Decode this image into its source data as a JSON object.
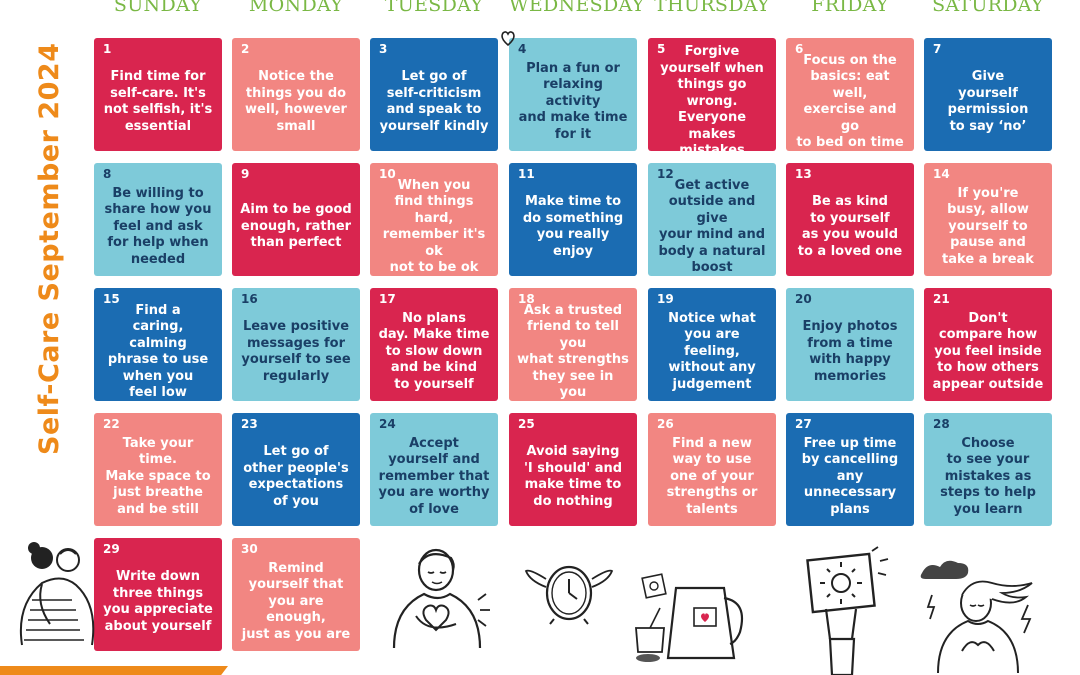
{
  "title": "Self-Care September 2024",
  "days": [
    "SUNDAY",
    "MONDAY",
    "TUESDAY",
    "WEDNESDAY",
    "THURSDAY",
    "FRIDAY",
    "SATURDAY"
  ],
  "cells": [
    {
      "num": "1",
      "text": "Find time for\nself-care. It's\nnot selfish, it's\nessential",
      "color": "red"
    },
    {
      "num": "2",
      "text": "Notice the\nthings you do\nwell, however\nsmall",
      "color": "pink"
    },
    {
      "num": "3",
      "text": "Let go of\nself-criticism\nand speak to\nyourself kindly",
      "color": "blue"
    },
    {
      "num": "4",
      "text": "Plan a fun or\nrelaxing activity\nand make time\nfor it",
      "color": "teal"
    },
    {
      "num": "5",
      "text": "Forgive\nyourself when\nthings go wrong.\nEveryone makes\nmistakes",
      "color": "red"
    },
    {
      "num": "6",
      "text": "Focus on the\nbasics: eat well,\nexercise and go\nto bed on time",
      "color": "pink"
    },
    {
      "num": "7",
      "text": "Give\nyourself\npermission\nto say ‘no’",
      "color": "blue"
    },
    {
      "num": "8",
      "text": "Be willing to\nshare how you\nfeel and ask\nfor help when\nneeded",
      "color": "teal"
    },
    {
      "num": "9",
      "text": "Aim to be good\nenough, rather\nthan perfect",
      "color": "red"
    },
    {
      "num": "10",
      "text": "When you\nfind things hard,\nremember it's ok\nnot to be ok",
      "color": "pink"
    },
    {
      "num": "11",
      "text": "Make time to\ndo something\nyou really enjoy",
      "color": "blue"
    },
    {
      "num": "12",
      "text": "Get active\noutside and give\nyour mind and\nbody a natural\nboost",
      "color": "teal"
    },
    {
      "num": "13",
      "text": "Be as kind\nto yourself\nas you would\nto a loved one",
      "color": "red"
    },
    {
      "num": "14",
      "text": "If you're\nbusy, allow\nyourself to\npause and\ntake a break",
      "color": "pink"
    },
    {
      "num": "15",
      "text": "Find a\ncaring, calming\nphrase to use\nwhen you\nfeel low",
      "color": "blue"
    },
    {
      "num": "16",
      "text": "Leave positive\nmessages for\nyourself to see\nregularly",
      "color": "teal"
    },
    {
      "num": "17",
      "text": "No plans\nday. Make time\nto slow down\nand be kind\nto yourself",
      "color": "red"
    },
    {
      "num": "18",
      "text": "Ask a trusted\nfriend to tell you\nwhat strengths\nthey see in you",
      "color": "pink"
    },
    {
      "num": "19",
      "text": "Notice what\nyou are feeling,\nwithout any\njudgement",
      "color": "blue"
    },
    {
      "num": "20",
      "text": "Enjoy photos\nfrom a time\nwith happy\nmemories",
      "color": "teal"
    },
    {
      "num": "21",
      "text": "Don't\ncompare how\nyou feel inside\nto how others\nappear outside",
      "color": "red"
    },
    {
      "num": "22",
      "text": "Take your time.\nMake space to\njust breathe\nand be still",
      "color": "pink"
    },
    {
      "num": "23",
      "text": "Let go of\nother people's\nexpectations\nof you",
      "color": "blue"
    },
    {
      "num": "24",
      "text": "Accept\nyourself and\nremember that\nyou are worthy\nof love",
      "color": "teal"
    },
    {
      "num": "25",
      "text": "Avoid saying\n'I should' and\nmake time to\ndo nothing",
      "color": "red"
    },
    {
      "num": "26",
      "text": "Find a new\nway to use\none of your\nstrengths or\ntalents",
      "color": "pink"
    },
    {
      "num": "27",
      "text": "Free up time\nby cancelling\nany unnecessary\nplans",
      "color": "blue"
    },
    {
      "num": "28",
      "text": "Choose\nto see your\nmistakes as\nsteps to help\nyou learn",
      "color": "teal"
    },
    {
      "num": "29",
      "text": "Write down\nthree things\nyou appreciate\nabout yourself",
      "color": "red"
    },
    {
      "num": "30",
      "text": "Remind\nyourself that\nyou are enough,\njust as you are",
      "color": "pink"
    }
  ],
  "colors": {
    "red": "#d9254f",
    "pink": "#f28682",
    "blue": "#1b6cb2",
    "teal": "#7ecad9",
    "title_orange": "#ee8a1a",
    "header_green": "#7ab845"
  },
  "illustrations": [
    "hug-icon",
    "heart-hands-person-icon",
    "flying-clock-icon",
    "kettle-tea-icon",
    "sun-sign-person-icon",
    "calm-person-storm-icon"
  ]
}
